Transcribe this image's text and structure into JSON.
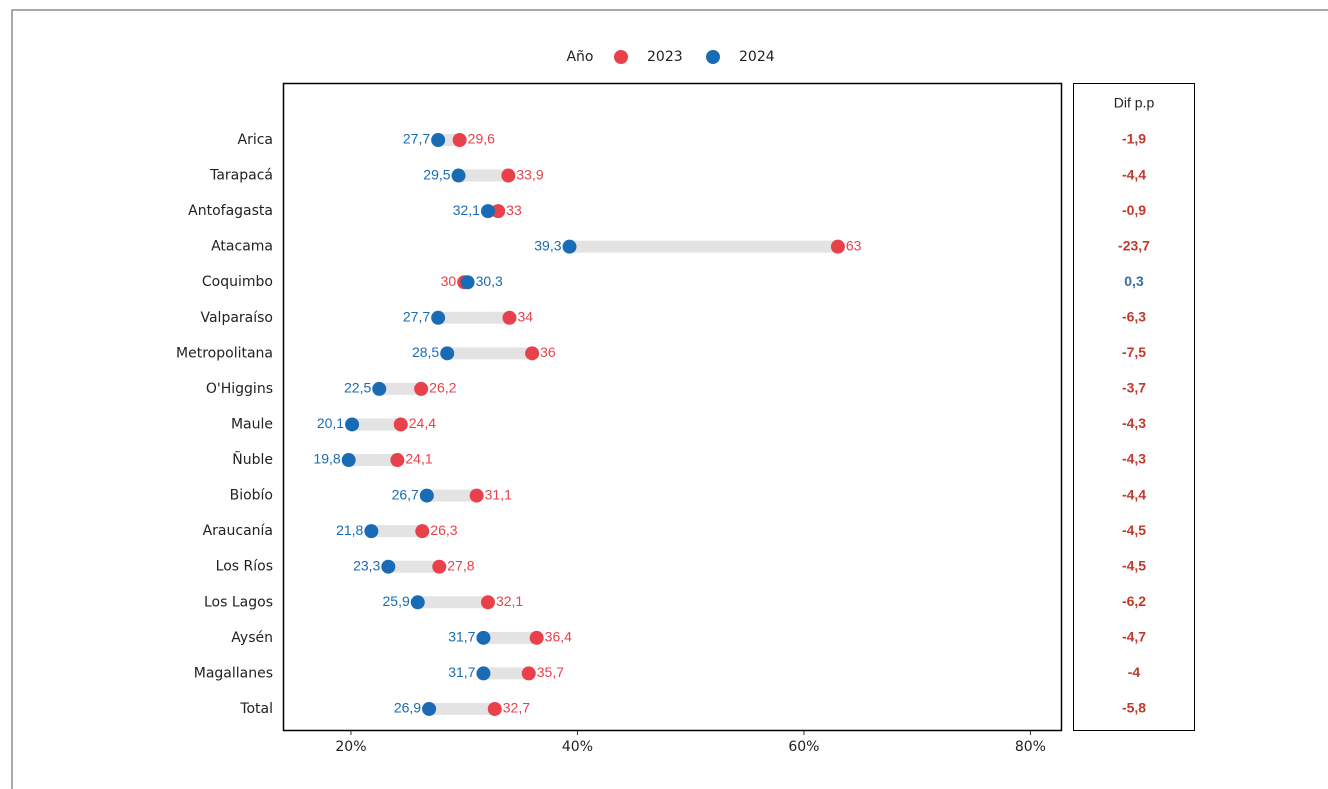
{
  "chart_data": {
    "type": "dumbbell",
    "legend_title": "Año",
    "categories": [
      "Arica",
      "Tarapacá",
      "Antofagasta",
      "Atacama",
      "Coquimbo",
      "Valparaíso",
      "Metropolitana",
      "O'Higgins",
      "Maule",
      "Ñuble",
      "Biobío",
      "Araucanía",
      "Los Ríos",
      "Los Lagos",
      "Aysén",
      "Magallanes",
      "Total"
    ],
    "series": [
      {
        "name": "2023",
        "color": "#e8414b",
        "values": [
          29.6,
          33.9,
          33,
          63,
          30,
          34,
          36,
          26.2,
          24.4,
          24.1,
          31.1,
          26.3,
          27.8,
          32.1,
          36.4,
          35.7,
          32.7
        ],
        "value_labels": [
          "29,6",
          "33,9",
          "33",
          "63",
          "30",
          "34",
          "36",
          "26,2",
          "24,4",
          "24,1",
          "31,1",
          "26,3",
          "27,8",
          "32,1",
          "36,4",
          "35,7",
          "32,7"
        ]
      },
      {
        "name": "2024",
        "color": "#1a6bb5",
        "values": [
          27.7,
          29.5,
          32.1,
          39.3,
          30.3,
          27.7,
          28.5,
          22.5,
          20.1,
          19.8,
          26.7,
          21.8,
          23.3,
          25.9,
          31.7,
          31.7,
          26.9
        ],
        "value_labels": [
          "27,7",
          "29,5",
          "32,1",
          "39,3",
          "30,3",
          "27,7",
          "28,5",
          "22,5",
          "20,1",
          "19,8",
          "26,7",
          "21,8",
          "23,3",
          "25,9",
          "31,7",
          "31,7",
          "26,9"
        ]
      }
    ],
    "xlim": [
      14,
      82.7
    ],
    "xticks": [
      {
        "value": 20,
        "label": "20%"
      },
      {
        "value": 40,
        "label": "40%"
      },
      {
        "value": 60,
        "label": "60%"
      },
      {
        "value": 80,
        "label": "80%"
      }
    ],
    "connector_color": "#e3e3e3",
    "difference": {
      "title": "Dif p.p",
      "values": [
        -1.9,
        -4.4,
        -0.9,
        -23.7,
        0.3,
        -6.3,
        -7.5,
        -3.7,
        -4.3,
        -4.3,
        -4.4,
        -4.5,
        -4.5,
        -6.2,
        -4.7,
        -4,
        -5.8
      ],
      "value_labels": [
        "-1,9",
        "-4,4",
        "-0,9",
        "-23,7",
        "0,3",
        "-6,3",
        "-7,5",
        "-3,7",
        "-4,3",
        "-4,3",
        "-4,4",
        "-4,5",
        "-4,5",
        "-6,2",
        "-4,7",
        "-4",
        "-5,8"
      ],
      "negative_color": "#c0392b",
      "positive_color": "#3b6ea0"
    }
  }
}
